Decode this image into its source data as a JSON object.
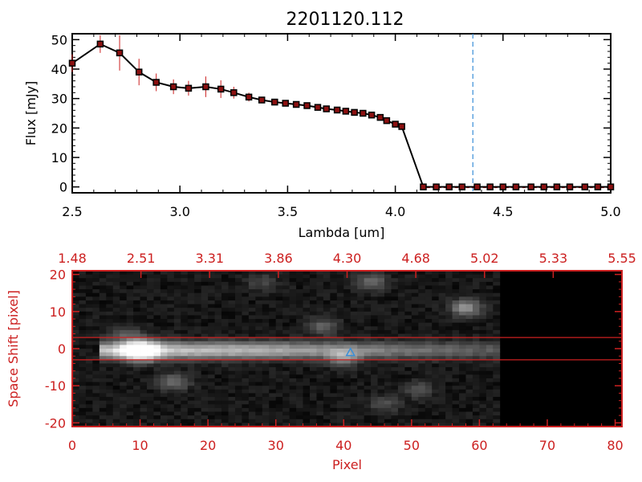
{
  "title": "2201120.112",
  "spectrum": {
    "chart_data": {
      "type": "line",
      "xlabel": "Lambda [um]",
      "ylabel": "Flux [mJy]",
      "xlim": [
        2.5,
        5.0
      ],
      "ylim": [
        -2,
        52
      ],
      "x_ticks": [
        "2.5",
        "3.0",
        "3.5",
        "4.0",
        "4.5",
        "5.0"
      ],
      "x_tick_values": [
        2.5,
        3.0,
        3.5,
        4.0,
        4.5,
        5.0
      ],
      "y_ticks": [
        "0",
        "10",
        "20",
        "30",
        "40",
        "50"
      ],
      "y_tick_values": [
        0,
        10,
        20,
        30,
        40,
        50
      ],
      "grid": false,
      "marker_vline": 4.36,
      "series": [
        {
          "x": [
            2.5,
            2.63,
            2.72,
            2.81,
            2.89,
            2.97,
            3.04,
            3.12,
            3.19,
            3.25,
            3.32,
            3.38,
            3.44,
            3.49,
            3.54,
            3.59,
            3.64,
            3.68,
            3.73,
            3.77,
            3.81,
            3.85,
            3.89,
            3.93,
            3.96,
            4.0,
            4.03,
            4.13,
            4.19,
            4.25,
            4.31,
            4.38,
            4.44,
            4.5,
            4.56,
            4.63,
            4.69,
            4.75,
            4.81,
            4.88,
            4.94,
            5.0
          ],
          "y": [
            42.0,
            48.5,
            45.5,
            39.0,
            35.5,
            34.0,
            33.5,
            34.0,
            33.2,
            32.0,
            30.5,
            29.5,
            28.8,
            28.4,
            28.0,
            27.6,
            27.0,
            26.5,
            26.1,
            25.7,
            25.3,
            25.0,
            24.4,
            23.6,
            22.5,
            21.3,
            20.5,
            0,
            0,
            0,
            0,
            0,
            0,
            0,
            0,
            0,
            0,
            0,
            0,
            0,
            0,
            0
          ],
          "yerr": [
            3.0,
            3.0,
            6.0,
            4.5,
            3.0,
            2.5,
            2.5,
            3.5,
            3.0,
            2.0,
            1.5,
            0.8,
            0.6,
            0.6,
            0.5,
            0.5,
            0.5,
            0.4,
            0.4,
            0.4,
            0.4,
            0.4,
            0.4,
            0.4,
            0.4,
            0.4,
            0.4,
            0,
            0,
            0,
            0,
            0,
            0,
            0,
            0,
            0,
            0,
            0,
            0,
            0,
            0,
            0
          ]
        }
      ]
    }
  },
  "image_panel": {
    "chart_data": {
      "type": "heatmap",
      "xlabel": "Pixel",
      "ylabel": "Space Shift [pixel]",
      "xlim": [
        0,
        81
      ],
      "ylim": [
        -21,
        21
      ],
      "x_ticks": [
        "0",
        "10",
        "20",
        "30",
        "40",
        "50",
        "60",
        "70",
        "80"
      ],
      "x_tick_values": [
        0,
        10,
        20,
        30,
        40,
        50,
        60,
        70,
        80
      ],
      "y_ticks": [
        "-20",
        "-10",
        "0",
        "10",
        "20"
      ],
      "y_tick_values": [
        -20,
        -10,
        0,
        10,
        20
      ],
      "top_ticks": [
        "1.48",
        "2.51",
        "3.31",
        "3.86",
        "4.30",
        "4.68",
        "5.02",
        "5.33",
        "5.55"
      ],
      "extraction_window": [
        -3,
        3
      ],
      "marker_pixel": [
        41,
        -1
      ],
      "data_extent_pixels": [
        0,
        63
      ],
      "sources": [
        {
          "x": 10,
          "y": -0.5,
          "peak": 1.0
        },
        {
          "x": 40,
          "y": -2.5,
          "peak": 0.35
        },
        {
          "x": 44,
          "y": 18,
          "peak": 0.3
        },
        {
          "x": 58,
          "y": 11,
          "peak": 0.45
        },
        {
          "x": 37,
          "y": 6,
          "peak": 0.25
        },
        {
          "x": 15,
          "y": -9,
          "peak": 0.3
        },
        {
          "x": 51,
          "y": -11,
          "peak": 0.2
        },
        {
          "x": 8,
          "y": 4,
          "peak": 0.2
        },
        {
          "x": 28,
          "y": 18,
          "peak": 0.15
        },
        {
          "x": 46,
          "y": -15,
          "peak": 0.18
        }
      ]
    }
  }
}
